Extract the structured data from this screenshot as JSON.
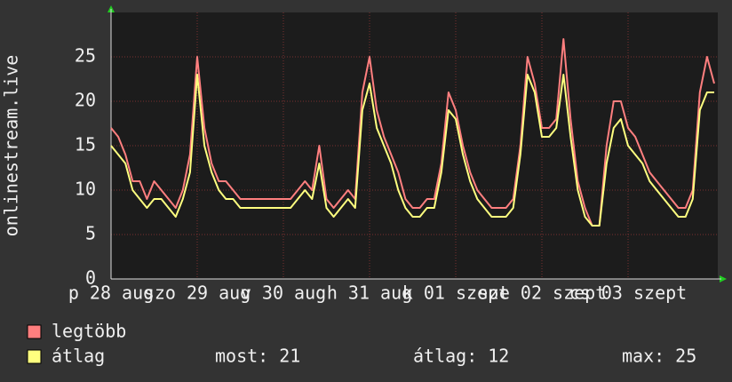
{
  "chart_data": {
    "type": "line",
    "ylabel": "onlinestream.live",
    "categories": [
      "p 28 aug",
      null,
      null,
      null,
      null,
      null,
      null,
      null,
      null,
      null,
      null,
      null,
      "szo 29 aug",
      null,
      null,
      null,
      null,
      null,
      null,
      null,
      null,
      null,
      null,
      null,
      "v 30 aug",
      null,
      null,
      null,
      null,
      null,
      null,
      null,
      null,
      null,
      null,
      null,
      "h 31 aug",
      null,
      null,
      null,
      null,
      null,
      null,
      null,
      null,
      null,
      null,
      null,
      "k 01 szept",
      null,
      null,
      null,
      null,
      null,
      null,
      null,
      null,
      null,
      null,
      null,
      "sze 02 szept",
      null,
      null,
      null,
      null,
      null,
      null,
      null,
      null,
      null,
      null,
      null,
      "cs 03 szept",
      null,
      null,
      null,
      null,
      null,
      null,
      null,
      null,
      null,
      null,
      null,
      null
    ],
    "series": [
      {
        "name": "legtöbb",
        "color": "#ff7f7f",
        "values": [
          17,
          16,
          14,
          11,
          11,
          9,
          11,
          10,
          9,
          8,
          10,
          14,
          25,
          17,
          13,
          11,
          11,
          10,
          9,
          9,
          9,
          9,
          9,
          9,
          9,
          9,
          10,
          11,
          10,
          15,
          9,
          8,
          9,
          10,
          9,
          21,
          25,
          19,
          16,
          14,
          12,
          9,
          8,
          8,
          9,
          9,
          13,
          21,
          19,
          15,
          12,
          10,
          9,
          8,
          8,
          8,
          9,
          15,
          25,
          22,
          17,
          17,
          18,
          27,
          18,
          11,
          8,
          6,
          6,
          15,
          20,
          20,
          17,
          16,
          14,
          12,
          11,
          10,
          9,
          8,
          8,
          10,
          21,
          25,
          22
        ]
      },
      {
        "name": "átlag",
        "color": "#ffff7f",
        "values": [
          15,
          14,
          13,
          10,
          9,
          8,
          9,
          9,
          8,
          7,
          9,
          12,
          23,
          15,
          12,
          10,
          9,
          9,
          8,
          8,
          8,
          8,
          8,
          8,
          8,
          8,
          9,
          10,
          9,
          13,
          8,
          7,
          8,
          9,
          8,
          19,
          22,
          17,
          15,
          13,
          10,
          8,
          7,
          7,
          8,
          8,
          12,
          19,
          18,
          14,
          11,
          9,
          8,
          7,
          7,
          7,
          8,
          14,
          23,
          21,
          16,
          16,
          17,
          23,
          16,
          10,
          7,
          6,
          6,
          13,
          17,
          18,
          15,
          14,
          13,
          11,
          10,
          9,
          8,
          7,
          7,
          9,
          19,
          21,
          21
        ]
      }
    ],
    "stats": [
      {
        "label": "most:",
        "value": 21
      },
      {
        "label": "átlag:",
        "value": 12
      },
      {
        "label": "max:",
        "value": 25
      }
    ],
    "ylim": [
      0,
      30
    ],
    "yticks": [
      0,
      5,
      10,
      15,
      20,
      25
    ],
    "grid": true
  }
}
